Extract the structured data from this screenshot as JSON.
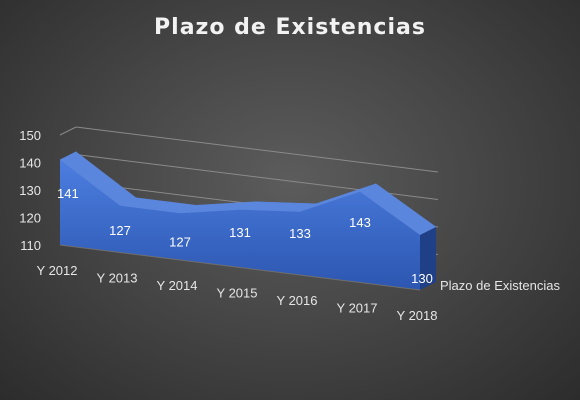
{
  "chart_data": {
    "type": "area",
    "title": "Plazo de Existencias",
    "categories": [
      "Y 2012",
      "Y 2013",
      "Y 2014",
      "Y 2015",
      "Y 2016",
      "Y 2017",
      "Y 2018"
    ],
    "series": [
      {
        "name": "Plazo de Existencias",
        "values": [
          141,
          127,
          127,
          131,
          133,
          143,
          130
        ],
        "color": "#4472c4"
      }
    ],
    "y_ticks": [
      110,
      120,
      130,
      140,
      150
    ],
    "ylim": [
      110,
      150
    ],
    "grid": true,
    "legend_position": "right",
    "three_d": true
  }
}
